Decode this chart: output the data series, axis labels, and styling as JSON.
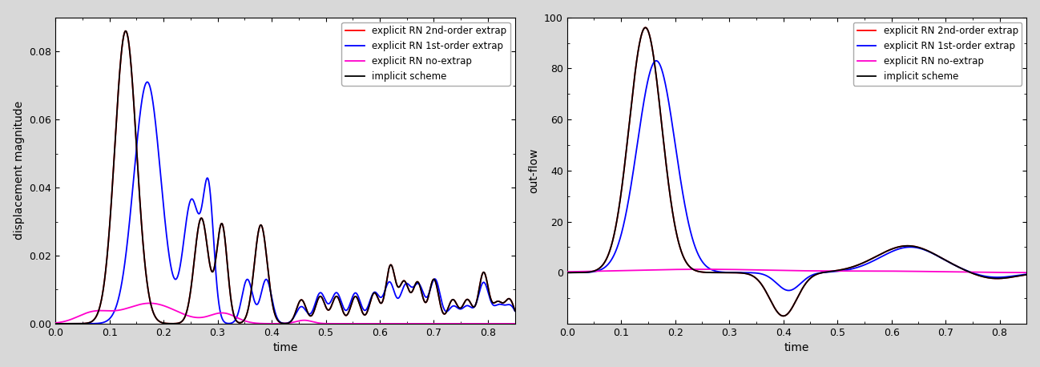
{
  "left_ylabel": "displacement magnitude",
  "right_ylabel": "out-flow",
  "xlabel": "time",
  "xlim": [
    0,
    0.85
  ],
  "left_ylim": [
    0,
    0.09
  ],
  "right_ylim": [
    -20,
    100
  ],
  "left_yticks": [
    0,
    0.02,
    0.04,
    0.06,
    0.08
  ],
  "right_yticks": [
    0,
    20,
    40,
    60,
    80,
    100
  ],
  "legend_labels": [
    "implicit scheme",
    "explicit RN no-extrap",
    "explicit RN 1st-order extrap",
    "explicit RN 2nd-order extrap"
  ],
  "colors": [
    "#000000",
    "#ff00cc",
    "#0000ff",
    "#ff0000"
  ],
  "linewidth": 1.3,
  "background_color": "#ffffff",
  "fig_facecolor": "#d8d8d8"
}
